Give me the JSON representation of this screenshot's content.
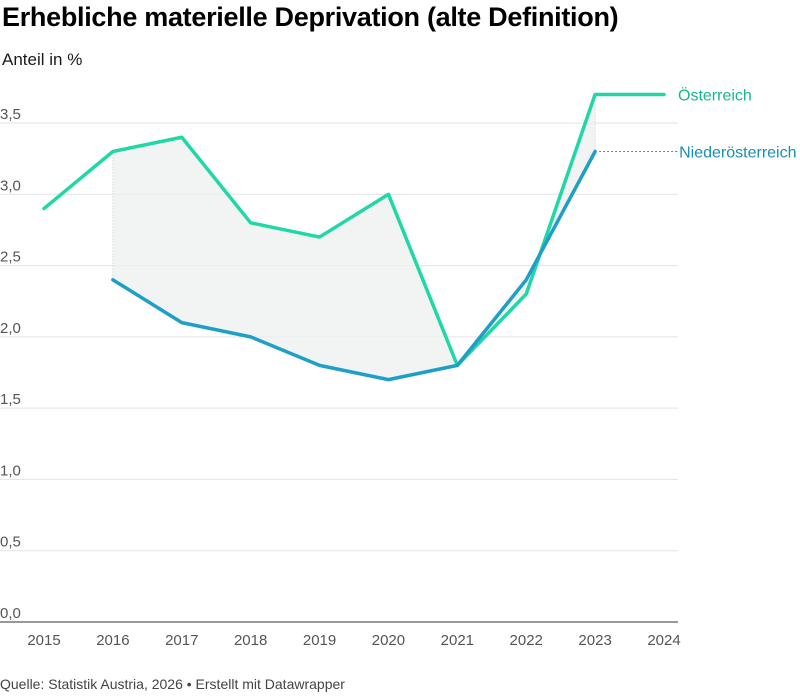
{
  "header": {
    "title": "Erhebliche materielle Deprivation (alte Definition)",
    "subtitle": "Anteil in %"
  },
  "footer": {
    "source": "Quelle: Statistik Austria, 2026 • Erstellt mit Datawrapper"
  },
  "chart_data": {
    "type": "line",
    "title": "Erhebliche materielle Deprivation (alte Definition)",
    "ylabel": "Anteil in %",
    "xlabel": "",
    "x": [
      "2015",
      "2016",
      "2017",
      "2018",
      "2019",
      "2020",
      "2021",
      "2022",
      "2023",
      "2024"
    ],
    "y_ticks": [
      "0,0",
      "0,5",
      "1,0",
      "1,5",
      "2,0",
      "2,5",
      "3,0",
      "3,5"
    ],
    "ylim": [
      0,
      3.5
    ],
    "grid": true,
    "legend": "direct labels at line ends",
    "shaded_area": "between series",
    "series": [
      {
        "name": "Österreich",
        "color": "#1fd8a6",
        "values": [
          2.9,
          3.3,
          3.4,
          2.8,
          2.7,
          3.0,
          1.8,
          2.3,
          3.7,
          3.7
        ]
      },
      {
        "name": "Niederösterreich",
        "color": "#1f9fc8",
        "values": [
          null,
          2.4,
          2.1,
          2.0,
          1.8,
          1.7,
          1.8,
          2.4,
          3.3,
          null
        ]
      }
    ]
  }
}
